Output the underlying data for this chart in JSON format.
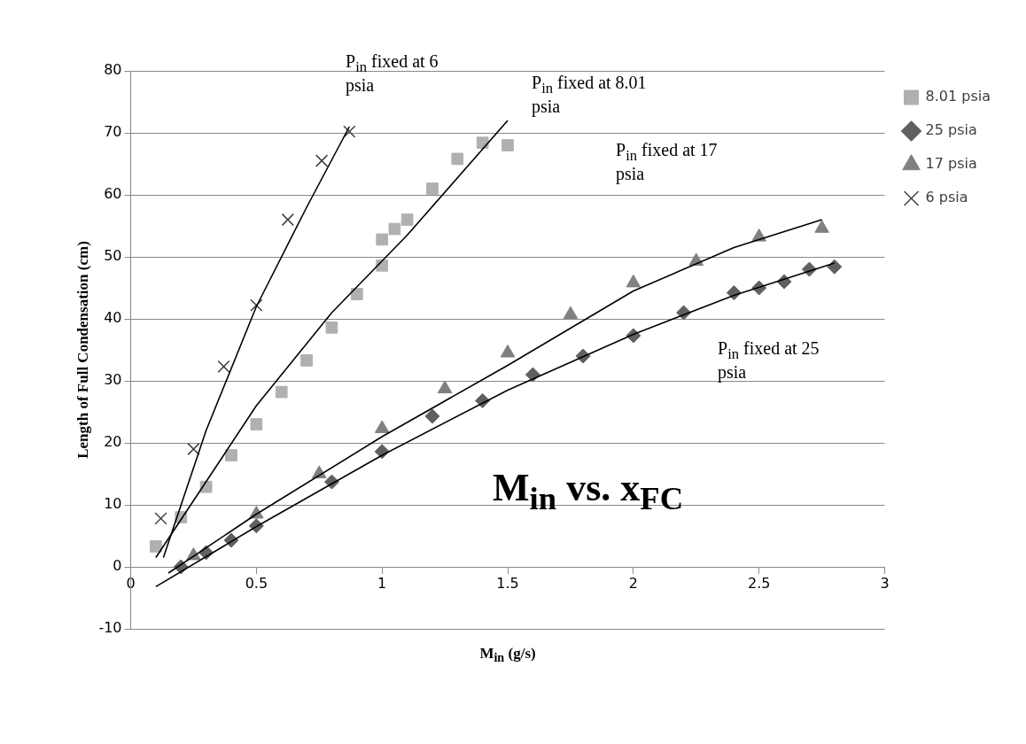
{
  "chart_data": {
    "type": "scatter",
    "title": "M$_{in}$ vs. x$_{FC}$",
    "xlabel": "M$_{in}$ (g/s)",
    "ylabel": "Length of Full Condensation (cm)",
    "xlim": [
      0,
      3
    ],
    "xticks": [
      0,
      0.5,
      1,
      1.5,
      2,
      2.5,
      3
    ],
    "ylim": [
      -10,
      80
    ],
    "yticks": [
      -10,
      0,
      10,
      20,
      30,
      40,
      50,
      60,
      70,
      80
    ],
    "grid": "y",
    "legend": "right",
    "annotations": [
      "P$_{in}$ fixed at 6 psia",
      "P$_{in}$ fixed at 8.01 psia",
      "P$_{in}$ fixed at 17 psia",
      "P$_{in}$ fixed at 25 psia"
    ],
    "series": [
      {
        "name": "8.01 psia",
        "color": "#b0b0b0",
        "marker": "square",
        "x": [
          0.1,
          0.2,
          0.3,
          0.4,
          0.5,
          0.6,
          0.7,
          0.8,
          0.9,
          1,
          1,
          1.05,
          1.1,
          1.2,
          1.3,
          1.4,
          1.5
        ],
        "values": [
          3.3,
          8,
          12.9,
          18,
          23,
          28.2,
          33.3,
          38.6,
          44,
          48.6,
          52.8,
          54.5,
          56,
          61,
          65.8,
          68.4,
          68
        ]
      },
      {
        "name": "25 psia",
        "color": "#606060",
        "marker": "diamond",
        "x": [
          0.2,
          0.3,
          0.4,
          0.5,
          0.8,
          1,
          1.2,
          1.4,
          1.6,
          1.8,
          2,
          2.2,
          2.4,
          2.5,
          2.6,
          2.7,
          2.8
        ],
        "values": [
          0,
          2.3,
          4.3,
          6.6,
          13.7,
          18.6,
          24.3,
          26.8,
          31,
          34,
          37.3,
          41,
          44.2,
          45,
          46,
          48,
          48.4
        ]
      },
      {
        "name": "17 psia",
        "color": "#808080",
        "marker": "triangle",
        "x": [
          0.25,
          0.5,
          0.75,
          1,
          1.25,
          1.5,
          1.75,
          2,
          2.25,
          2.5,
          2.75
        ],
        "values": [
          1.8,
          8.5,
          15,
          22.3,
          28.7,
          34.5,
          40.7,
          45.8,
          49.3,
          53.2,
          54.6
        ]
      },
      {
        "name": "6 psia",
        "color": "#404040",
        "marker": "cross",
        "x": [
          0.12,
          0.25,
          0.37,
          0.5,
          0.625,
          0.76,
          0.87
        ],
        "values": [
          7.8,
          19,
          32.3,
          42.2,
          56,
          65.5,
          70.2
        ]
      },
      {
        "type": "line",
        "color": "#000000",
        "marker": "none",
        "x": [
          0.13,
          0.3,
          0.5,
          0.7,
          0.87
        ],
        "values": [
          1.5,
          22,
          42,
          58,
          71
        ]
      },
      {
        "type": "line",
        "color": "#000000",
        "marker": "none",
        "x": [
          0.1,
          0.5,
          0.8,
          1.1,
          1.5
        ],
        "values": [
          1.5,
          26,
          41,
          53.5,
          72
        ]
      },
      {
        "type": "line",
        "color": "#000000",
        "marker": "none",
        "x": [
          0.15,
          0.5,
          1,
          1.5,
          2,
          2.4,
          2.75
        ],
        "values": [
          -1,
          8.5,
          21,
          32.5,
          44.5,
          51.5,
          56
        ]
      },
      {
        "type": "line",
        "color": "#000000",
        "marker": "none",
        "x": [
          0.1,
          0.5,
          1,
          1.5,
          2,
          2.4,
          2.8
        ],
        "values": [
          -3.2,
          6.5,
          18,
          28.5,
          37.5,
          43.8,
          49
        ]
      }
    ]
  }
}
